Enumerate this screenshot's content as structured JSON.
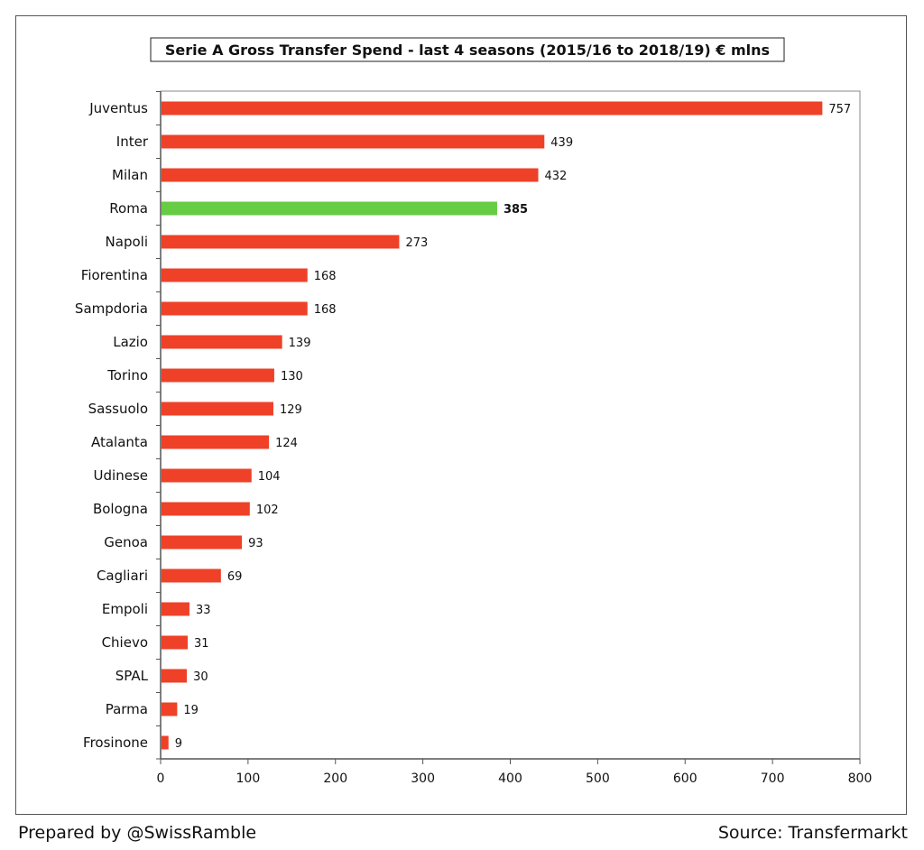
{
  "chart_data": {
    "type": "bar",
    "orientation": "horizontal",
    "title": "Serie A Gross Transfer Spend - last 4 seasons (2015/16 to 2018/19) € mlns",
    "xlabel": "",
    "ylabel": "",
    "xlim": [
      0,
      800
    ],
    "xticks": [
      0,
      100,
      200,
      300,
      400,
      500,
      600,
      700,
      800
    ],
    "grid": false,
    "categories": [
      "Juventus",
      "Inter",
      "Milan",
      "Roma",
      "Napoli",
      "Fiorentina",
      "Sampdoria",
      "Lazio",
      "Torino",
      "Sassuolo",
      "Atalanta",
      "Udinese",
      "Bologna",
      "Genoa",
      "Cagliari",
      "Empoli",
      "Chievo",
      "SPAL",
      "Parma",
      "Frosinone"
    ],
    "values": [
      757,
      439,
      432,
      385,
      273,
      168,
      168,
      139,
      130,
      129,
      124,
      104,
      102,
      93,
      69,
      33,
      31,
      30,
      19,
      9
    ],
    "highlight": "Roma",
    "colors": {
      "bar": "#ee4128",
      "highlight": "#66cc44",
      "axis": "#555555"
    }
  },
  "footer": {
    "prepared_by": "Prepared by @SwissRamble",
    "source": "Source: Transfermarkt"
  }
}
